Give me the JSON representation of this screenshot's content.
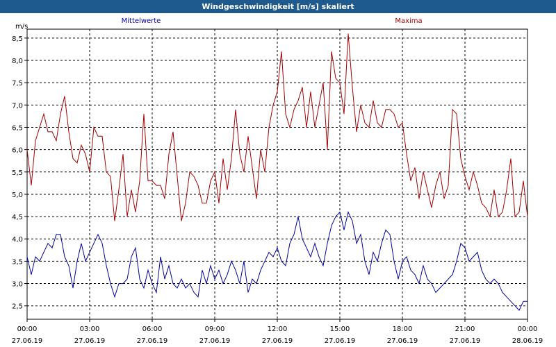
{
  "window": {
    "title": "Windgeschwindigkeit [m/s] skaliert"
  },
  "chart_data": {
    "type": "line",
    "title": "Windgeschwindigkeit [m/s] skaliert",
    "ylabel": "m/s",
    "xlabel": "",
    "ylim": [
      2.2,
      8.7
    ],
    "y_ticks": [
      "2,5",
      "3,0",
      "3,5",
      "4,0",
      "4,5",
      "5,0",
      "5,5",
      "6,0",
      "6,5",
      "7,0",
      "7,5",
      "8,0",
      "8,5"
    ],
    "x_ticks": [
      {
        "time": "00:00",
        "date": "27.06.19"
      },
      {
        "time": "03:00",
        "date": "27.06.19"
      },
      {
        "time": "06:00",
        "date": "27.06.19"
      },
      {
        "time": "09:00",
        "date": "27.06.19"
      },
      {
        "time": "12:00",
        "date": "27.06.19"
      },
      {
        "time": "15:00",
        "date": "27.06.19"
      },
      {
        "time": "18:00",
        "date": "27.06.19"
      },
      {
        "time": "21:00",
        "date": "27.06.19"
      },
      {
        "time": "00:00",
        "date": "28.06.19"
      }
    ],
    "grid": true,
    "series": [
      {
        "name": "Mittelwerte",
        "color": "#0000a0",
        "x_hours": [
          0,
          0.2,
          0.4,
          0.6,
          0.8,
          1.0,
          1.2,
          1.4,
          1.6,
          1.8,
          2.0,
          2.2,
          2.4,
          2.6,
          2.8,
          3.0,
          3.2,
          3.4,
          3.6,
          3.8,
          4.0,
          4.2,
          4.4,
          4.6,
          4.8,
          5.0,
          5.2,
          5.4,
          5.6,
          5.8,
          6.0,
          6.2,
          6.4,
          6.6,
          6.8,
          7.0,
          7.2,
          7.4,
          7.6,
          7.8,
          8.0,
          8.2,
          8.4,
          8.6,
          8.8,
          9.0,
          9.2,
          9.4,
          9.6,
          9.8,
          10.0,
          10.2,
          10.4,
          10.6,
          10.8,
          11.0,
          11.2,
          11.4,
          11.6,
          11.8,
          12.0,
          12.2,
          12.4,
          12.6,
          12.8,
          13.0,
          13.2,
          13.4,
          13.6,
          13.8,
          14.0,
          14.2,
          14.4,
          14.6,
          14.8,
          15.0,
          15.2,
          15.4,
          15.6,
          15.8,
          16.0,
          16.2,
          16.4,
          16.6,
          16.8,
          17.0,
          17.2,
          17.4,
          17.6,
          17.8,
          18.0,
          18.2,
          18.4,
          18.6,
          18.8,
          19.0,
          19.2,
          19.4,
          19.6,
          19.8,
          20.0,
          20.2,
          20.4,
          20.6,
          20.8,
          21.0,
          21.2,
          21.4,
          21.6,
          21.8,
          22.0,
          22.2,
          22.4,
          22.6,
          22.8,
          23.0,
          23.2,
          23.4,
          23.6,
          23.8,
          24.0
        ],
        "values": [
          3.6,
          3.2,
          3.6,
          3.5,
          3.7,
          3.9,
          3.8,
          4.1,
          4.1,
          3.6,
          3.4,
          2.9,
          3.5,
          3.9,
          3.5,
          3.7,
          3.9,
          4.1,
          3.9,
          3.4,
          3.0,
          2.7,
          3.0,
          3.0,
          3.1,
          3.6,
          3.8,
          3.1,
          2.9,
          3.3,
          3.0,
          2.8,
          3.6,
          3.1,
          3.4,
          3.0,
          2.9,
          3.1,
          2.9,
          3.0,
          2.8,
          2.7,
          3.3,
          3.0,
          3.4,
          3.1,
          3.3,
          3.0,
          3.2,
          3.5,
          3.3,
          3.0,
          3.5,
          2.8,
          3.1,
          3.0,
          3.3,
          3.5,
          3.7,
          3.6,
          3.8,
          3.5,
          3.4,
          3.9,
          4.1,
          4.5,
          4.0,
          3.8,
          3.6,
          3.9,
          3.6,
          3.4,
          3.9,
          4.3,
          4.5,
          4.6,
          4.2,
          4.6,
          4.4,
          3.9,
          4.1,
          3.5,
          3.2,
          3.7,
          3.5,
          3.9,
          4.2,
          4.1,
          3.5,
          3.1,
          3.5,
          3.6,
          3.3,
          3.2,
          3.0,
          3.4,
          3.1,
          3.0,
          2.8,
          2.9,
          3.0,
          3.1,
          3.2,
          3.5,
          3.9,
          3.8,
          3.5,
          3.6,
          3.7,
          3.3,
          3.1,
          3.0,
          3.1,
          3.0,
          2.8,
          2.7,
          2.6,
          2.5,
          2.4,
          2.6,
          2.6
        ]
      },
      {
        "name": "Maxima",
        "color": "#a00000",
        "x_hours": [
          0,
          0.2,
          0.4,
          0.6,
          0.8,
          1.0,
          1.2,
          1.4,
          1.6,
          1.8,
          2.0,
          2.2,
          2.4,
          2.6,
          2.8,
          3.0,
          3.2,
          3.4,
          3.6,
          3.8,
          4.0,
          4.2,
          4.4,
          4.6,
          4.8,
          5.0,
          5.2,
          5.4,
          5.6,
          5.8,
          6.0,
          6.2,
          6.4,
          6.6,
          6.8,
          7.0,
          7.2,
          7.4,
          7.6,
          7.8,
          8.0,
          8.2,
          8.4,
          8.6,
          8.8,
          9.0,
          9.2,
          9.4,
          9.6,
          9.8,
          10.0,
          10.2,
          10.4,
          10.6,
          10.8,
          11.0,
          11.2,
          11.4,
          11.6,
          11.8,
          12.0,
          12.2,
          12.4,
          12.6,
          12.8,
          13.0,
          13.2,
          13.4,
          13.6,
          13.8,
          14.0,
          14.2,
          14.4,
          14.6,
          14.8,
          15.0,
          15.2,
          15.4,
          15.6,
          15.8,
          16.0,
          16.2,
          16.4,
          16.6,
          16.8,
          17.0,
          17.2,
          17.4,
          17.6,
          17.8,
          18.0,
          18.2,
          18.4,
          18.6,
          18.8,
          19.0,
          19.2,
          19.4,
          19.6,
          19.8,
          20.0,
          20.2,
          20.4,
          20.6,
          20.8,
          21.0,
          21.2,
          21.4,
          21.6,
          21.8,
          22.0,
          22.2,
          22.4,
          22.6,
          22.8,
          23.0,
          23.2,
          23.4,
          23.6,
          23.8,
          24.0
        ],
        "values": [
          6.0,
          5.2,
          6.2,
          6.5,
          6.8,
          6.4,
          6.4,
          6.2,
          6.8,
          7.2,
          6.4,
          5.8,
          5.7,
          6.1,
          5.9,
          5.5,
          6.5,
          6.3,
          6.3,
          5.5,
          5.4,
          4.4,
          5.1,
          5.9,
          4.5,
          5.1,
          4.6,
          5.3,
          6.8,
          5.3,
          5.3,
          5.2,
          5.2,
          4.9,
          5.9,
          6.4,
          5.4,
          4.4,
          4.8,
          5.5,
          5.4,
          5.2,
          4.8,
          4.8,
          5.3,
          5.5,
          4.8,
          5.8,
          5.1,
          5.8,
          6.9,
          5.9,
          5.5,
          6.3,
          5.6,
          4.9,
          6.0,
          5.5,
          6.5,
          7.0,
          7.3,
          8.2,
          6.8,
          6.5,
          6.9,
          7.1,
          7.4,
          6.5,
          7.3,
          6.5,
          7.0,
          7.5,
          6.0,
          8.2,
          7.6,
          7.5,
          6.8,
          8.6,
          7.4,
          6.4,
          7.0,
          6.6,
          6.5,
          7.1,
          6.6,
          6.5,
          6.9,
          6.9,
          6.8,
          6.5,
          6.6,
          5.9,
          5.3,
          5.6,
          4.9,
          5.5,
          5.1,
          4.7,
          5.2,
          5.5,
          4.9,
          5.2,
          6.9,
          6.8,
          5.8,
          5.4,
          5.1,
          5.5,
          5.2,
          4.8,
          4.7,
          4.5,
          5.1,
          4.5,
          4.6,
          5.1,
          5.8,
          4.5,
          4.6,
          5.3,
          4.5
        ]
      }
    ]
  }
}
